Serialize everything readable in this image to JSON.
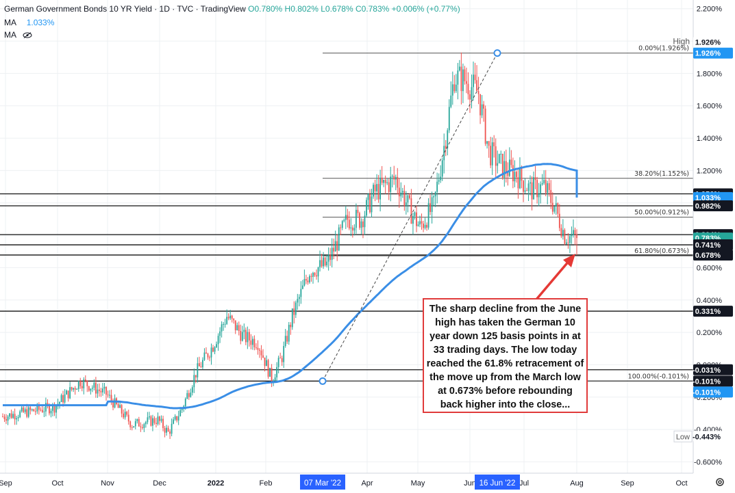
{
  "legend": {
    "title": "German Government Bonds 10 YR Yield · 1D · TVC · TradingView",
    "ohlc": "O0.780%  H0.802%  L0.678%  C0.783%  +0.006% (+0.77%)",
    "ma_row": "MA",
    "ma_value": "1.033%",
    "ma2_row": "MA",
    "eye_icon": "eye-slash-icon"
  },
  "annotation": "The sharp decline from the June high has taken the German 10 year down 125 basis points in at 33 trading days. The low today reached the 61.8% retracement of the move up from the March low at 0.673% before rebounding back higher into the close...",
  "colors": {
    "up": "#26a69a",
    "down": "#ef5350",
    "ma": "#3a8ee6",
    "arrow": "#e53935",
    "badge": "#131722",
    "ma_badge": "#2196f3"
  },
  "chart_data": {
    "type": "candlestick",
    "title": "German Government Bonds 10 YR Yield",
    "interval": "1D",
    "source": "TVC",
    "yunit": "%",
    "ylim": [
      -0.67,
      2.22
    ],
    "y_ticks": [
      "2.200%",
      "1.800%",
      "1.600%",
      "1.400%",
      "1.200%",
      "0.600%",
      "0.400%",
      "0.200%",
      "0.000%",
      "-0.200%",
      "-0.400%",
      "-0.600%"
    ],
    "x_ticks": [
      "Sep",
      "Oct",
      "Nov",
      "Dec",
      "2022",
      "Feb",
      "Apr",
      "May",
      "Jun",
      "Jul",
      "Aug",
      "Sep",
      "Oct"
    ],
    "x_markers": [
      "07 Mar '22",
      "16 Jun '22"
    ],
    "high_label": "High",
    "low_label": "Low",
    "price_labels": [
      {
        "text": "1.926%",
        "value": 1.926,
        "style": "ma"
      },
      {
        "text": "1.056%",
        "value": 1.056,
        "style": "dark"
      },
      {
        "text": "1.033%",
        "value": 1.033,
        "style": "ma"
      },
      {
        "text": "0.982%",
        "value": 0.982,
        "style": "dark"
      },
      {
        "text": "0.804%",
        "value": 0.804,
        "style": "dark"
      },
      {
        "text": "0.783%",
        "value": 0.783,
        "style": "up"
      },
      {
        "text": "0.741%",
        "value": 0.741,
        "style": "dark"
      },
      {
        "text": "0.678%",
        "value": 0.678,
        "style": "dark"
      },
      {
        "text": "0.331%",
        "value": 0.331,
        "style": "dark"
      },
      {
        "text": "-0.031%",
        "value": -0.031,
        "style": "dark"
      },
      {
        "text": "-0.101%",
        "value": -0.101,
        "style": "dark"
      },
      {
        "text": "-0.101%",
        "value": -0.101,
        "style": "ma"
      },
      {
        "text": "1.926%",
        "value": 1.926,
        "style": "plain"
      },
      {
        "text": "-0.443%",
        "value": -0.443,
        "style": "plain"
      }
    ],
    "fibonacci": [
      {
        "label": "0.00%(1.926%)",
        "value": 1.926
      },
      {
        "label": "38.20%(1.152%)",
        "value": 1.152
      },
      {
        "label": "50.00%(0.912%)",
        "value": 0.912
      },
      {
        "label": "61.80%(0.673%)",
        "value": 0.673
      },
      {
        "label": "100.00%(-0.101%)",
        "value": -0.101
      }
    ],
    "horizontal_levels": [
      1.056,
      0.982,
      0.804,
      0.741,
      0.678,
      0.331,
      -0.031,
      -0.101
    ],
    "moving_average": {
      "name": "MA",
      "last": 1.033
    },
    "swing_low": {
      "date": "07 Mar '22",
      "value": -0.101
    },
    "swing_high": {
      "date": "16 Jun '22",
      "value": 1.926
    },
    "close": 0.783,
    "path": [
      [
        0,
        -0.32
      ],
      [
        30,
        -0.26
      ],
      [
        45,
        -0.1
      ],
      [
        60,
        -0.18
      ],
      [
        75,
        -0.37
      ],
      [
        90,
        -0.34
      ],
      [
        96,
        -0.42
      ],
      [
        104,
        -0.27
      ],
      [
        112,
        -0.05
      ],
      [
        122,
        0.12
      ],
      [
        130,
        0.3
      ],
      [
        140,
        0.17
      ],
      [
        148,
        0.14
      ],
      [
        156,
        -0.09
      ],
      [
        162,
        0.05
      ],
      [
        168,
        0.3
      ],
      [
        178,
        0.58
      ],
      [
        188,
        0.62
      ],
      [
        200,
        0.9
      ],
      [
        208,
        0.9
      ],
      [
        216,
        1.07
      ],
      [
        228,
        1.15
      ],
      [
        236,
        0.96
      ],
      [
        242,
        0.85
      ],
      [
        250,
        0.98
      ],
      [
        256,
        1.35
      ],
      [
        262,
        1.78
      ],
      [
        268,
        1.76
      ],
      [
        276,
        1.68
      ],
      [
        282,
        1.32
      ],
      [
        290,
        1.22
      ],
      [
        298,
        1.18
      ],
      [
        306,
        1.08
      ],
      [
        314,
        1.1
      ],
      [
        320,
        0.98
      ],
      [
        326,
        0.8
      ],
      [
        333,
        0.783
      ]
    ]
  }
}
